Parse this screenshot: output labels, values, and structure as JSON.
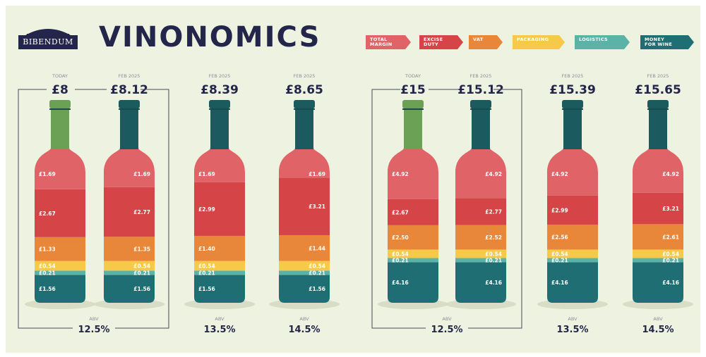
{
  "title": "VINONOMICS",
  "logo": "BIBENDUM",
  "colors": {
    "total_margin": "#e06467",
    "excise_duty": "#d54548",
    "vat": "#e8873a",
    "packaging": "#f7c948",
    "logistics": "#5bb3a8",
    "money_for_wine": "#1f6e73",
    "neck_green": "#6aa155",
    "neck_dark": "#1b5a5f",
    "text": "#23264a"
  },
  "legend": [
    {
      "label": "TOTAL\nMARGIN",
      "color": "#e06467"
    },
    {
      "label": "EXCISE\nDUTY",
      "color": "#d54548"
    },
    {
      "label": "VAT",
      "color": "#e8873a"
    },
    {
      "label": "PACKAGING",
      "color": "#f7c948"
    },
    {
      "label": "LOGISTICS",
      "color": "#5bb3a8"
    },
    {
      "label": "MONEY\nFOR WINE",
      "color": "#1f6e73"
    }
  ],
  "chart_data": {
    "type": "bar",
    "segments_order": [
      "Money for wine",
      "Logistics",
      "Packaging",
      "VAT",
      "Excise duty",
      "Total margin"
    ],
    "bottles": [
      {
        "date": "TODAY",
        "price": "£8",
        "abv": "12.5%",
        "neck": "green",
        "values": [
          1.56,
          0.21,
          0.54,
          1.33,
          2.67,
          1.69
        ],
        "labels": [
          "£1.56",
          "£0.21",
          "£0.54",
          "£1.33",
          "£2.67",
          "£1.69"
        ]
      },
      {
        "date": "FEB 2025",
        "price": "£8.12",
        "abv": "12.5%",
        "neck": "dark",
        "values": [
          1.56,
          0.21,
          0.54,
          1.35,
          2.77,
          1.69
        ],
        "labels": [
          "£1.56",
          "£0.21",
          "£0.54",
          "£1.35",
          "£2.77",
          "£1.69"
        ]
      },
      {
        "date": "FEB 2025",
        "price": "£8.39",
        "abv": "13.5%",
        "neck": "dark",
        "values": [
          1.56,
          0.21,
          0.54,
          1.4,
          2.99,
          1.69
        ],
        "labels": [
          "£1.56",
          "£0.21",
          "£0.54",
          "£1.40",
          "£2.99",
          "£1.69"
        ]
      },
      {
        "date": "FEB 2025",
        "price": "£8.65",
        "abv": "14.5%",
        "neck": "dark",
        "values": [
          1.56,
          0.21,
          0.54,
          1.44,
          3.21,
          1.69
        ],
        "labels": [
          "£1.56",
          "£0.21",
          "£0.54",
          "£1.44",
          "£3.21",
          "£1.69"
        ]
      },
      {
        "date": "TODAY",
        "price": "£15",
        "abv": "12.5%",
        "neck": "green",
        "values": [
          4.16,
          0.21,
          0.54,
          2.5,
          2.67,
          4.92
        ],
        "labels": [
          "£4.16",
          "£0.21",
          "£0.54",
          "£2.50",
          "£2.67",
          "£4.92"
        ]
      },
      {
        "date": "FEB 2025",
        "price": "£15.12",
        "abv": "12.5%",
        "neck": "dark",
        "values": [
          4.16,
          0.21,
          0.54,
          2.52,
          2.77,
          4.92
        ],
        "labels": [
          "£4.16",
          "£0.21",
          "£0.54",
          "£2.52",
          "£2.77",
          "£4.92"
        ]
      },
      {
        "date": "FEB 2025",
        "price": "£15.39",
        "abv": "13.5%",
        "neck": "dark",
        "values": [
          4.16,
          0.21,
          0.54,
          2.56,
          2.99,
          4.92
        ],
        "labels": [
          "£4.16",
          "£0.21",
          "£0.54",
          "£2.56",
          "£2.99",
          "£4.92"
        ]
      },
      {
        "date": "FEB 2025",
        "price": "£15.65",
        "abv": "14.5%",
        "neck": "dark",
        "values": [
          4.16,
          0.21,
          0.54,
          2.61,
          3.21,
          4.92
        ],
        "labels": [
          "£4.16",
          "£0.21",
          "£0.54",
          "£2.61",
          "£3.21",
          "£4.92"
        ]
      }
    ],
    "abv_caption": "ABV",
    "grouped_abv": [
      "12.5%",
      "12.5%"
    ]
  }
}
